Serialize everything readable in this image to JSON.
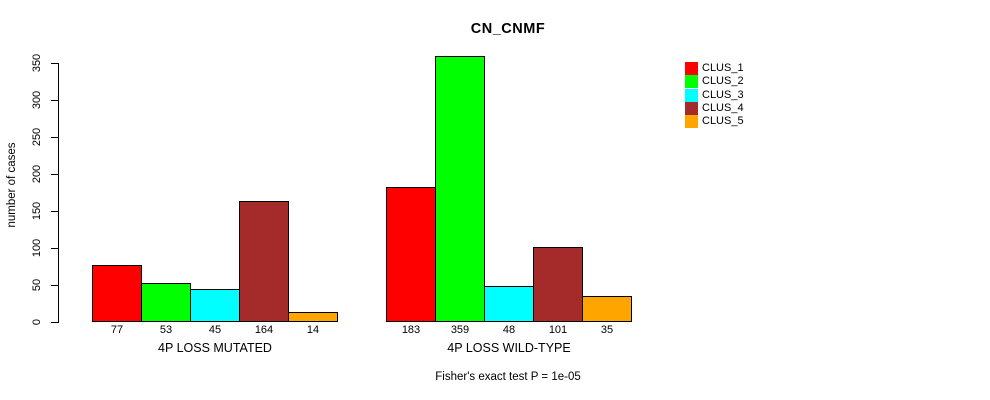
{
  "title": "CN_CNMF",
  "chart_data": {
    "type": "bar",
    "title": "CN_CNMF",
    "ylabel": "number of cases",
    "xlabel": "",
    "ylim": [
      0,
      350
    ],
    "yticks": [
      0,
      50,
      100,
      150,
      200,
      250,
      300,
      350
    ],
    "grid": false,
    "legend_position": "right",
    "categories": [
      "4P LOSS MUTATED",
      "4P LOSS WILD-TYPE"
    ],
    "series": [
      {
        "name": "CLUS_1",
        "color": "#ff0000",
        "values": [
          77,
          183
        ]
      },
      {
        "name": "CLUS_2",
        "color": "#00ff00",
        "values": [
          53,
          359
        ]
      },
      {
        "name": "CLUS_3",
        "color": "#00ffff",
        "values": [
          45,
          48
        ]
      },
      {
        "name": "CLUS_4",
        "color": "#a52a2a",
        "values": [
          164,
          101
        ]
      },
      {
        "name": "CLUS_5",
        "color": "#ffa500",
        "values": [
          14,
          35
        ]
      }
    ],
    "bar_value_labels": {
      "4P LOSS MUTATED": [
        77,
        53,
        45,
        164,
        14
      ],
      "4P LOSS WILD-TYPE": [
        183,
        359,
        48,
        101,
        35
      ]
    },
    "annotation": "Fisher's exact test P = 1e-05"
  }
}
